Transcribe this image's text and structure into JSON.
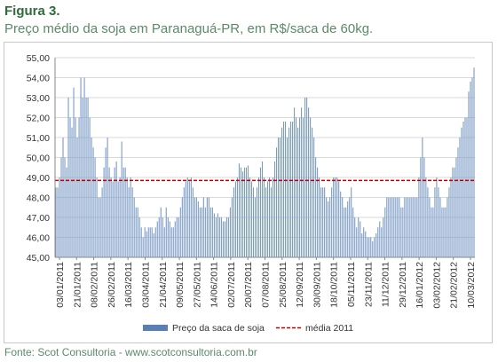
{
  "header": {
    "title": "Figura 3.",
    "subtitle": "Preço médio da soja em Paranaguá-PR, em R$/saca de 60kg."
  },
  "footer": {
    "source": "Fonte: Scot Consultoria - www.scotconsultoria.com.br"
  },
  "colors": {
    "title": "#2e6c3a",
    "bar": "#7b9bc6",
    "bar_legend": "#5a7fb5",
    "average_line": "#c00000",
    "grid": "#d9d9d9"
  },
  "chart_data": {
    "type": "bar",
    "title": "",
    "xlabel": "",
    "ylabel": "",
    "ylim": [
      45,
      55
    ],
    "yticks": [
      "45,00",
      "46,00",
      "47,00",
      "48,00",
      "49,00",
      "50,00",
      "51,00",
      "52,00",
      "53,00",
      "54,00",
      "55,00"
    ],
    "grid": true,
    "legend_position": "bottom",
    "x_tick_labels": [
      "03/01/2011",
      "21/01/2011",
      "08/02/2011",
      "26/02/2011",
      "16/03/2011",
      "03/04/2011",
      "21/04/2011",
      "09/05/2011",
      "27/05/2011",
      "14/06/2011",
      "02/07/2011",
      "20/07/2011",
      "07/08/2011",
      "25/08/2011",
      "12/09/2011",
      "30/09/2011",
      "18/10/2011",
      "05/11/2011",
      "23/11/2011",
      "11/12/2011",
      "29/12/2011",
      "16/01/2012",
      "03/02/2012",
      "21/02/2012",
      "10/03/2012"
    ],
    "series": [
      {
        "name": "Preço da saca de soja",
        "kind": "bar",
        "values": [
          48.5,
          48.5,
          49,
          50,
          51,
          50,
          49.5,
          53,
          52,
          51.5,
          53.5,
          52,
          51,
          52,
          54,
          53,
          54,
          53,
          53,
          52,
          51,
          50.5,
          50,
          49,
          48,
          48,
          48.5,
          49.5,
          50.5,
          51,
          49.5,
          49,
          48.8,
          49.5,
          49.8,
          48.8,
          49,
          50.8,
          49.5,
          49.5,
          49,
          48.5,
          49,
          48.5,
          48,
          47.5,
          47.5,
          47,
          46.5,
          46,
          46.5,
          46.3,
          46.5,
          46.5,
          46.5,
          46.2,
          46.5,
          46.8,
          47,
          47.5,
          47,
          46.5,
          47.5,
          47,
          46.8,
          46.5,
          46.5,
          46.8,
          47,
          47,
          47.5,
          48,
          48.5,
          48.8,
          49,
          48.8,
          49,
          48.5,
          48,
          48,
          47.8,
          47.5,
          47.5,
          48,
          47.5,
          48,
          48,
          47.5,
          47.5,
          47.2,
          47,
          47.2,
          47,
          47,
          46.8,
          46.8,
          47,
          47,
          47.5,
          48,
          48.5,
          48.8,
          49,
          49.7,
          49.5,
          49.3,
          49.5,
          49.5,
          49.6,
          49,
          48.8,
          48.5,
          48,
          48.5,
          49,
          49.5,
          49.8,
          49,
          48.5,
          48.8,
          49,
          48.5,
          49,
          49.8,
          50.5,
          51,
          51,
          51.5,
          51.8,
          51.8,
          51,
          51.5,
          51.8,
          51.8,
          52.5,
          52,
          51.5,
          52,
          52.5,
          52,
          53,
          53,
          52.5,
          52,
          51.5,
          51,
          50,
          49.5,
          49,
          48.5,
          48.5,
          48.5,
          48,
          47.8,
          48,
          48.5,
          49,
          49,
          49,
          48.8,
          48.3,
          48,
          47.5,
          47.5,
          47.8,
          48,
          48.5,
          47.5,
          47,
          46.5,
          47,
          46.8,
          46.2,
          46.5,
          46.3,
          46,
          46,
          46,
          45.8,
          46,
          46.2,
          46.5,
          46.8,
          46.5,
          47,
          47.5,
          48,
          48,
          48,
          48,
          48,
          48,
          48,
          48,
          47.5,
          47.5,
          48,
          48,
          48,
          48,
          48,
          48,
          48,
          48,
          49,
          50,
          51,
          50,
          49,
          48.5,
          48,
          47.5,
          47.5,
          48.5,
          49,
          48.5,
          48,
          47.5,
          47.5,
          47.5,
          48,
          48.5,
          49,
          49.5,
          49.5,
          50,
          50.5,
          51,
          51.5,
          51.8,
          52,
          52,
          53.3,
          53.8,
          54,
          54.5
        ]
      },
      {
        "name": "média 2011",
        "kind": "line",
        "value": 48.85
      }
    ]
  }
}
